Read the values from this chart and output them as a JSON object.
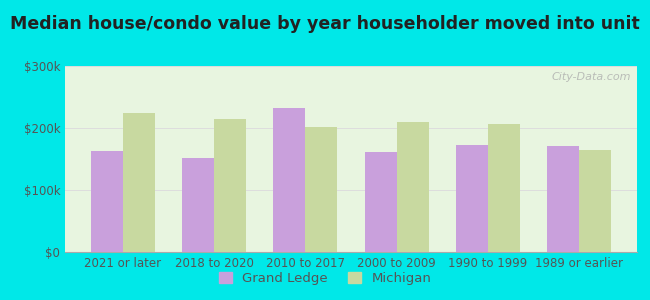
{
  "title": "Median house/condo value by year householder moved into unit",
  "categories": [
    "2021 or later",
    "2018 to 2020",
    "2010 to 2017",
    "2000 to 2009",
    "1990 to 1999",
    "1989 or earlier"
  ],
  "grand_ledge": [
    163000,
    152000,
    232000,
    162000,
    172000,
    171000
  ],
  "michigan": [
    225000,
    215000,
    202000,
    210000,
    207000,
    165000
  ],
  "grand_ledge_color": "#c9a0dc",
  "michigan_color": "#c8d9a0",
  "background_color": "#00e8e8",
  "plot_bg": "#e8f5e0",
  "ylim": [
    0,
    300000
  ],
  "yticks": [
    0,
    100000,
    200000,
    300000
  ],
  "ytick_labels": [
    "$0",
    "$100k",
    "$200k",
    "$300k"
  ],
  "legend_label_gl": "Grand Ledge",
  "legend_label_mi": "Michigan",
  "title_fontsize": 12.5,
  "tick_fontsize": 8.5,
  "legend_fontsize": 9.5,
  "bar_width": 0.35,
  "watermark": "City-Data.com"
}
